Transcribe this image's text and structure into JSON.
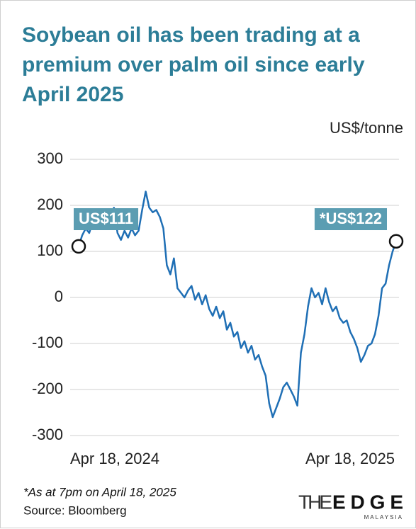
{
  "chart_data": {
    "type": "line",
    "title": "Soybean oil has been trading at a premium over palm oil since early April 2025",
    "y_label": "US$/tonne",
    "categories": [
      "Apr 18, 2024",
      null,
      null,
      null,
      null,
      null,
      null,
      null,
      null,
      null,
      null,
      null,
      null,
      null,
      null,
      null,
      null,
      null,
      null,
      null,
      null,
      null,
      null,
      null,
      null,
      null,
      null,
      null,
      null,
      null,
      null,
      null,
      null,
      null,
      null,
      null,
      null,
      null,
      null,
      null,
      null,
      null,
      null,
      null,
      null,
      null,
      null,
      null,
      null,
      null,
      null,
      null,
      null,
      null,
      null,
      null,
      null,
      null,
      null,
      null,
      null,
      null,
      null,
      null,
      null,
      null,
      null,
      null,
      null,
      null,
      null,
      null,
      null,
      null,
      null,
      null,
      null,
      null,
      null,
      null,
      null,
      null,
      null,
      null,
      null,
      null,
      null,
      null,
      null,
      null,
      "Apr 18, 2025"
    ],
    "series": [
      {
        "name": "Soybean oil premium over palm oil",
        "color": "#1f6fb5",
        "values": [
          111,
          135,
          150,
          140,
          165,
          150,
          180,
          170,
          185,
          160,
          195,
          140,
          125,
          145,
          130,
          150,
          135,
          145,
          190,
          230,
          195,
          185,
          190,
          175,
          150,
          70,
          50,
          85,
          20,
          10,
          0,
          15,
          25,
          -5,
          10,
          -15,
          5,
          -25,
          -40,
          -20,
          -45,
          -30,
          -70,
          -55,
          -85,
          -75,
          -110,
          -95,
          -120,
          -105,
          -135,
          -125,
          -150,
          -170,
          -230,
          -260,
          -240,
          -220,
          -195,
          -185,
          -200,
          -215,
          -235,
          -120,
          -80,
          -20,
          20,
          0,
          10,
          -15,
          20,
          -10,
          -30,
          -20,
          -45,
          -55,
          -50,
          -75,
          -90,
          -110,
          -140,
          -125,
          -105,
          -100,
          -80,
          -40,
          20,
          30,
          70,
          100,
          122
        ]
      }
    ],
    "ylim": [
      -300,
      300
    ],
    "yticks": [
      -300,
      -200,
      -100,
      0,
      100,
      200,
      300
    ],
    "grid": true,
    "annotations": [
      {
        "text": "US$111",
        "index": 0
      },
      {
        "text": "*US$122",
        "index": 90
      }
    ],
    "footnote": "*As at 7pm on April 18, 2025",
    "source": "Source: Bloomberg"
  },
  "logo": {
    "part1": "THE",
    "part2": "EDGE",
    "sub": "MALAYSIA"
  }
}
